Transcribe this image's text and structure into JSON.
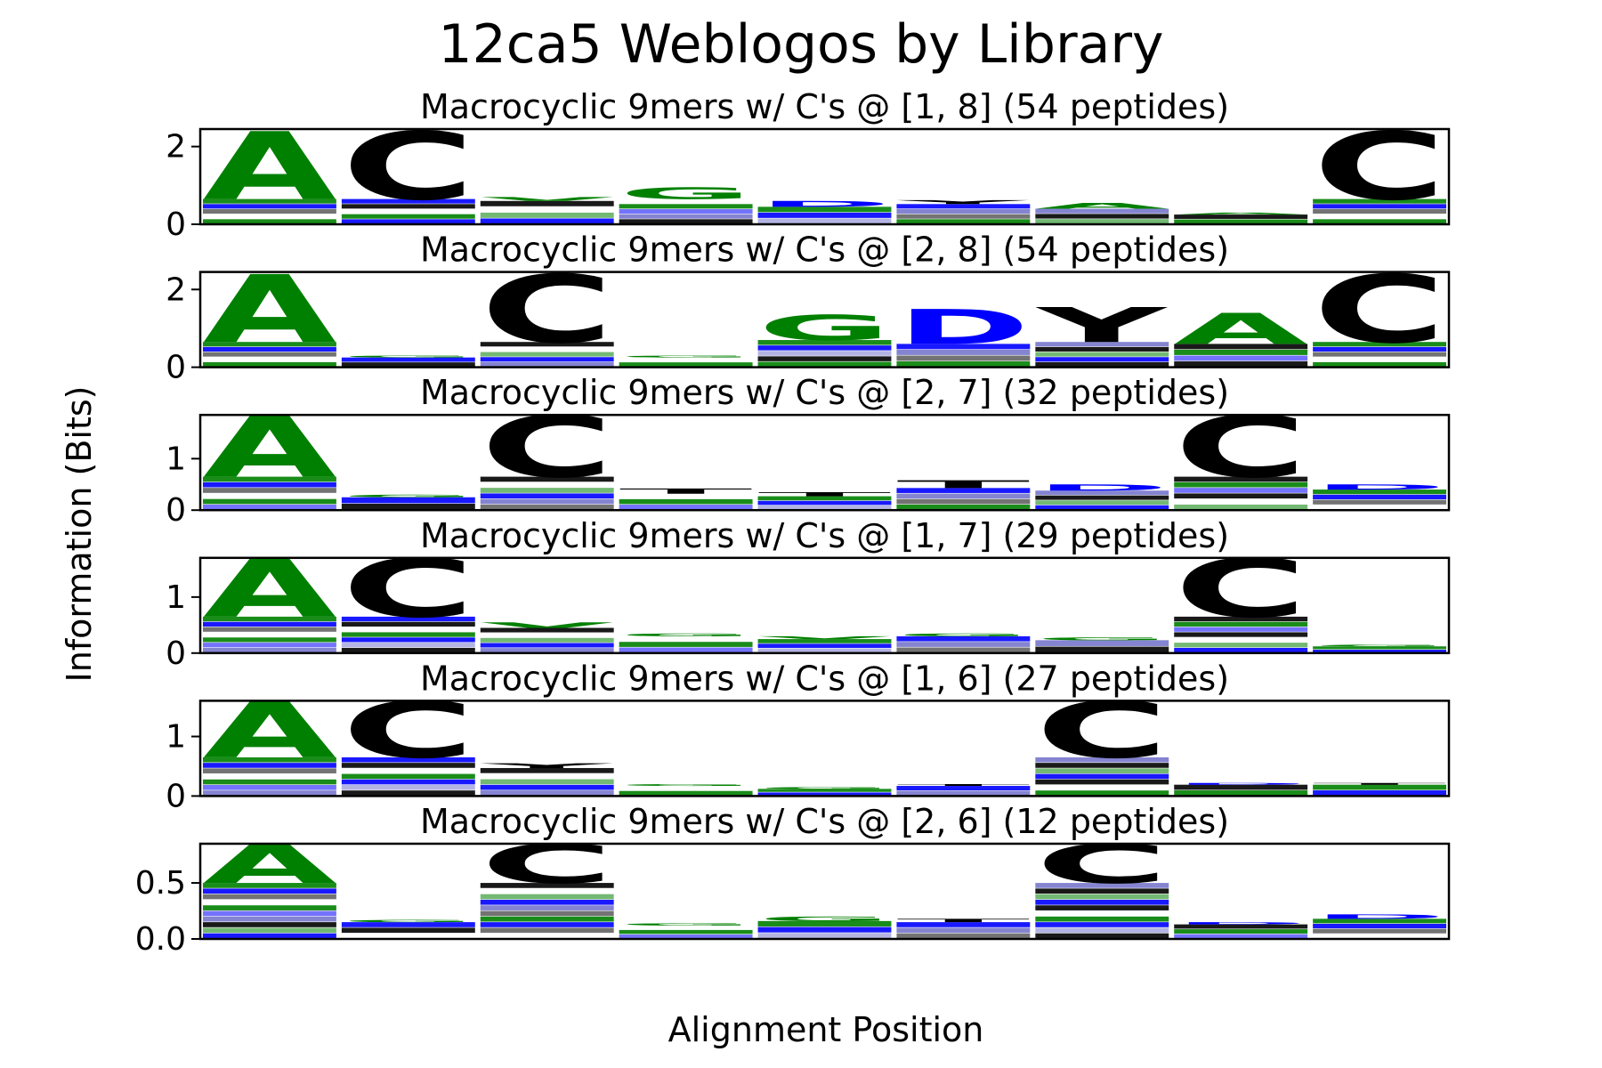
{
  "chart_data": {
    "type": "sequence-logo",
    "title": "12ca5 Weblogos by Library",
    "xlabel": "Alignment Position",
    "ylabel": "Information (Bits)",
    "colors": {
      "green": "#008000",
      "black": "#000000",
      "blue": "#0000ff"
    },
    "panels": [
      {
        "title": "Macrocyclic 9mers w/ C's @ [1, 8] (54 peptides)",
        "ylim": [
          0,
          2.45
        ],
        "yticks": [
          "0",
          "2"
        ],
        "ytick_values": [
          0,
          2
        ],
        "positions": [
          {
            "letter": "A",
            "color": "green",
            "height": 1.75,
            "total": 2.4
          },
          {
            "letter": "C",
            "color": "black",
            "height": 1.75,
            "total": 2.4
          },
          {
            "letter": "V",
            "color": "green",
            "height": 0.1,
            "total": 0.7
          },
          {
            "letter": "G",
            "color": "green",
            "height": 0.3,
            "total": 0.95
          },
          {
            "letter": "D",
            "color": "blue",
            "height": 0.15,
            "total": 0.6
          },
          {
            "letter": "Y",
            "color": "black",
            "height": 0.1,
            "total": 0.62
          },
          {
            "letter": "A",
            "color": "green",
            "height": 0.15,
            "total": 0.55
          },
          {
            "letter": "A",
            "color": "green",
            "height": 0.05,
            "total": 0.3
          },
          {
            "letter": "C",
            "color": "black",
            "height": 1.75,
            "total": 2.4
          }
        ]
      },
      {
        "title": "Macrocyclic 9mers w/ C's @ [2, 8] (54 peptides)",
        "ylim": [
          0,
          2.45
        ],
        "yticks": [
          "0",
          "2"
        ],
        "ytick_values": [
          0,
          2
        ],
        "positions": [
          {
            "letter": "A",
            "color": "green",
            "height": 1.75,
            "total": 2.4
          },
          {
            "letter": "G",
            "color": "green",
            "height": 0.05,
            "total": 0.3
          },
          {
            "letter": "C",
            "color": "black",
            "height": 1.75,
            "total": 2.4
          },
          {
            "letter": "G",
            "color": "green",
            "height": 0.05,
            "total": 0.3
          },
          {
            "letter": "G",
            "color": "green",
            "height": 0.65,
            "total": 1.35
          },
          {
            "letter": "D",
            "color": "blue",
            "height": 0.9,
            "total": 1.5
          },
          {
            "letter": "Y",
            "color": "black",
            "height": 0.9,
            "total": 1.55
          },
          {
            "letter": "A",
            "color": "green",
            "height": 0.8,
            "total": 1.4
          },
          {
            "letter": "C",
            "color": "black",
            "height": 1.75,
            "total": 2.4
          }
        ]
      },
      {
        "title": "Macrocyclic 9mers w/ C's @ [2, 7] (32 peptides)",
        "ylim": [
          0,
          1.85
        ],
        "yticks": [
          "0",
          "1"
        ],
        "ytick_values": [
          0,
          1
        ],
        "positions": [
          {
            "letter": "A",
            "color": "green",
            "height": 1.2,
            "total": 1.85
          },
          {
            "letter": "G",
            "color": "green",
            "height": 0.05,
            "total": 0.3
          },
          {
            "letter": "C",
            "color": "black",
            "height": 1.2,
            "total": 1.85
          },
          {
            "letter": "T",
            "color": "black",
            "height": 0.1,
            "total": 0.42
          },
          {
            "letter": "T",
            "color": "black",
            "height": 0.08,
            "total": 0.35
          },
          {
            "letter": "T",
            "color": "black",
            "height": 0.15,
            "total": 0.58
          },
          {
            "letter": "D",
            "color": "blue",
            "height": 0.12,
            "total": 0.5
          },
          {
            "letter": "C",
            "color": "black",
            "height": 1.2,
            "total": 1.85
          },
          {
            "letter": "D",
            "color": "blue",
            "height": 0.1,
            "total": 0.5
          }
        ]
      },
      {
        "title": "Macrocyclic 9mers w/ C's @ [1, 7] (29 peptides)",
        "ylim": [
          0,
          1.7
        ],
        "yticks": [
          "0",
          "1"
        ],
        "ytick_values": [
          0,
          1
        ],
        "positions": [
          {
            "letter": "A",
            "color": "green",
            "height": 1.05,
            "total": 1.7
          },
          {
            "letter": "C",
            "color": "black",
            "height": 1.05,
            "total": 1.7
          },
          {
            "letter": "V",
            "color": "green",
            "height": 0.1,
            "total": 0.55
          },
          {
            "letter": "G",
            "color": "green",
            "height": 0.05,
            "total": 0.35
          },
          {
            "letter": "V",
            "color": "green",
            "height": 0.05,
            "total": 0.3
          },
          {
            "letter": "G",
            "color": "green",
            "height": 0.05,
            "total": 0.35
          },
          {
            "letter": "G",
            "color": "green",
            "height": 0.05,
            "total": 0.28
          },
          {
            "letter": "C",
            "color": "black",
            "height": 1.05,
            "total": 1.7
          },
          {
            "letter": "G",
            "color": "green",
            "height": 0.03,
            "total": 0.15
          }
        ]
      },
      {
        "title": "Macrocyclic 9mers w/ C's @ [1, 6] (27 peptides)",
        "ylim": [
          0,
          1.6
        ],
        "yticks": [
          "0",
          "1"
        ],
        "ytick_values": [
          0,
          1
        ],
        "positions": [
          {
            "letter": "A",
            "color": "green",
            "height": 0.95,
            "total": 1.6
          },
          {
            "letter": "C",
            "color": "black",
            "height": 0.95,
            "total": 1.6
          },
          {
            "letter": "Y",
            "color": "black",
            "height": 0.08,
            "total": 0.55
          },
          {
            "letter": "G",
            "color": "green",
            "height": 0.03,
            "total": 0.2
          },
          {
            "letter": "G",
            "color": "green",
            "height": 0.03,
            "total": 0.15
          },
          {
            "letter": "T",
            "color": "black",
            "height": 0.03,
            "total": 0.2
          },
          {
            "letter": "C",
            "color": "black",
            "height": 0.95,
            "total": 1.6
          },
          {
            "letter": "D",
            "color": "blue",
            "height": 0.03,
            "total": 0.22
          },
          {
            "letter": "T",
            "color": "black",
            "height": 0.03,
            "total": 0.22
          }
        ]
      },
      {
        "title": "Macrocyclic 9mers w/ C's @ [2, 6] (12 peptides)",
        "ylim": [
          0,
          0.85
        ],
        "yticks": [
          "0.0",
          "0.5"
        ],
        "ytick_values": [
          0,
          0.5
        ],
        "positions": [
          {
            "letter": "A",
            "color": "green",
            "height": 0.35,
            "total": 0.85
          },
          {
            "letter": "G",
            "color": "green",
            "height": 0.02,
            "total": 0.17
          },
          {
            "letter": "C",
            "color": "black",
            "height": 0.35,
            "total": 0.85
          },
          {
            "letter": "G",
            "color": "green",
            "height": 0.02,
            "total": 0.14
          },
          {
            "letter": "G",
            "color": "green",
            "height": 0.04,
            "total": 0.2
          },
          {
            "letter": "T",
            "color": "black",
            "height": 0.03,
            "total": 0.18
          },
          {
            "letter": "C",
            "color": "black",
            "height": 0.35,
            "total": 0.85
          },
          {
            "letter": "D",
            "color": "blue",
            "height": 0.02,
            "total": 0.15
          },
          {
            "letter": "D",
            "color": "blue",
            "height": 0.04,
            "total": 0.22
          }
        ]
      }
    ]
  }
}
